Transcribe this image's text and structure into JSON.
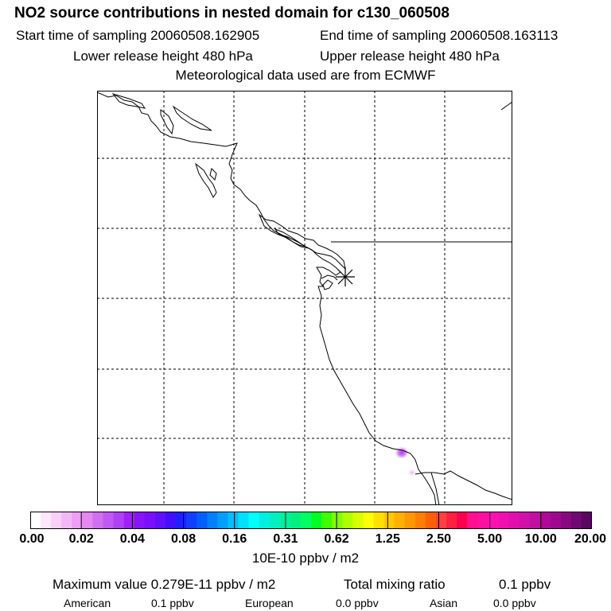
{
  "header": {
    "title": "NO2 source contributions in nested domain for c130_060508",
    "start_time": "Start time of sampling 20060508.162905",
    "end_time": "End time of sampling 20060508.163113",
    "lower_release": "Lower release height  480 hPa",
    "upper_release": "Upper release height  480 hPa",
    "met_data": "Meteorological data used are from ECMWF"
  },
  "chart_data": {
    "type": "heatmap",
    "map": {
      "grid": true,
      "release_marker": "asterisk",
      "concentration_spots": [
        {
          "description": "plume near coast",
          "level": 0.02,
          "color": "#d070f0"
        },
        {
          "description": "plume near coast core",
          "level": 0.04,
          "color": "#b030ff"
        }
      ]
    },
    "colorbar": {
      "tick_labels": [
        "0.00",
        "0.02",
        "0.04",
        "0.08",
        "0.16",
        "0.31",
        "0.62",
        "1.25",
        "2.50",
        "5.00",
        "10.00",
        "20.00"
      ],
      "colors": [
        "#ffffff",
        "#fce8fc",
        "#f8d0f8",
        "#f2b8f6",
        "#ec9ff4",
        "#e488f2",
        "#d070f0",
        "#c058f4",
        "#b040f8",
        "#a020fc",
        "#8a14f8",
        "#7810ff",
        "#6010ff",
        "#4010ff",
        "#2020ff",
        "#1040ff",
        "#0060ff",
        "#0080ff",
        "#00a0ff",
        "#00c0ff",
        "#00e0ff",
        "#00ffff",
        "#00f0e0",
        "#00f0c0",
        "#00f0a0",
        "#00f080",
        "#00ff60",
        "#00ff20",
        "#40ff00",
        "#80ff00",
        "#b0ff00",
        "#d8ff00",
        "#ffff00",
        "#ffe000",
        "#ffc800",
        "#ffb000",
        "#ff9800",
        "#ff8000",
        "#ff6000",
        "#ff4040",
        "#ff2040",
        "#ff0050",
        "#ff1090",
        "#ff10a0",
        "#ff10b0",
        "#f010b0",
        "#e010b0",
        "#d010a8",
        "#c010a0",
        "#b00898",
        "#a00890",
        "#880880",
        "#700870",
        "#580860"
      ],
      "units": "10E-10 ppbv / m2"
    }
  },
  "footer": {
    "max_value": "Maximum value  0.279E-11 ppbv / m2",
    "total_label": "Total mixing ratio",
    "total_value": "0.1 ppbv",
    "american_label": "American",
    "american_value": "0.1 ppbv",
    "european_label": "European",
    "european_value": "0.0 ppbv",
    "asian_label": "Asian",
    "asian_value": "0.0 ppbv"
  }
}
